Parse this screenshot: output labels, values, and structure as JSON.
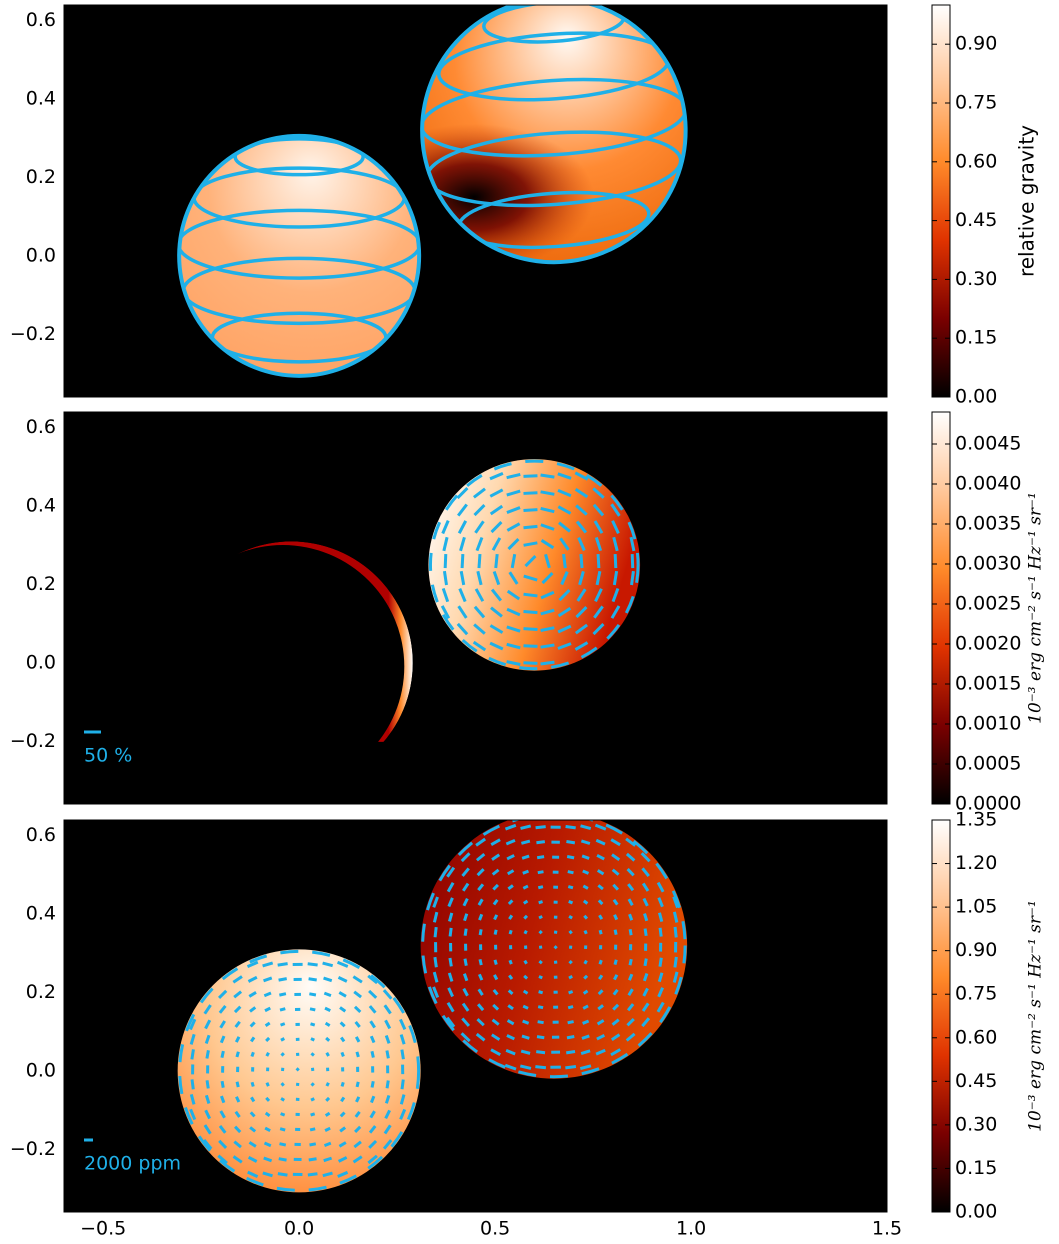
{
  "chart_data": [
    {
      "type": "image",
      "xlim": [
        -0.6,
        1.5
      ],
      "ylim": [
        -0.36,
        0.64
      ],
      "yticks": [
        {
          "value": -0.2,
          "label": "−0.2"
        },
        {
          "value": 0,
          "label": "0.0"
        },
        0.2,
        0.4,
        0.6
      ],
      "colorbar": {
        "label": "relative gravity",
        "lim": [
          0,
          1.0
        ],
        "ticks": [
          {
            "value": 0,
            "label": "0.00"
          },
          0.15,
          {
            "value": 0.3,
            "label": "0.30"
          },
          0.45,
          {
            "value": 0.6,
            "label": "0.60"
          },
          0.75,
          {
            "value": 0.9,
            "label": "0.90"
          }
        ]
      },
      "colormap": [
        "#000000",
        "#7a0000",
        "#e03300",
        "#ff8a2a",
        "#ffc79a",
        "#ffffff"
      ],
      "overlay_color": "#1fb0e8",
      "stars": [
        {
          "x": 0,
          "y": 0,
          "r": 0.31,
          "gradient": "radial",
          "colors": [
            "#fff4ea",
            "#ffb27a",
            "#ff9f5e"
          ],
          "contours": true
        },
        {
          "x": 0.65,
          "y": 0.32,
          "r": 0.34,
          "gradient": "radial",
          "colors": [
            "#fffaf5",
            "#ff8a33",
            "#e86000"
          ],
          "contours": true,
          "dark_spot": true
        }
      ]
    },
    {
      "type": "image",
      "xlim": [
        -0.6,
        1.5
      ],
      "ylim": [
        -0.36,
        0.64
      ],
      "yticks": [
        {
          "value": -0.2,
          "label": "−0.2"
        },
        {
          "value": 0,
          "label": "0.0"
        },
        0.2,
        0.4,
        0.6
      ],
      "colorbar": {
        "label": "10⁻³ erg cm⁻² s⁻¹ Hz⁻¹ sr⁻¹",
        "lim": [
          0,
          0.0049
        ],
        "ticks": [
          {
            "value": 0,
            "label": "0.0000"
          },
          0.0005,
          {
            "value": 0.001,
            "label": "0.0010"
          },
          0.0015,
          {
            "value": 0.002,
            "label": "0.0020"
          },
          0.0025,
          {
            "value": 0.003,
            "label": "0.0030"
          },
          0.0035,
          {
            "value": 0.004,
            "label": "0.0040"
          },
          0.0045
        ]
      },
      "colormap": [
        "#000000",
        "#7a0000",
        "#e03300",
        "#ff8a2a",
        "#ffc79a",
        "#ffffff"
      ],
      "overlay_color": "#1fb0e8",
      "scale_label": "50 %",
      "stars": [
        {
          "x": -0.02,
          "y": 0.0,
          "r": 0.31,
          "gradient": "crescent",
          "colors": [
            "#ffffff",
            "#ff8a2a",
            "#b00000"
          ]
        },
        {
          "x": 0.6,
          "y": 0.25,
          "r": 0.27,
          "gradient": "linear",
          "colors": [
            "#ffffff",
            "#ffd9b0",
            "#ff8a2a",
            "#c81800"
          ],
          "vectors": true
        }
      ]
    },
    {
      "type": "image",
      "xlim": [
        -0.6,
        1.5
      ],
      "ylim": [
        -0.36,
        0.64
      ],
      "yticks": [
        {
          "value": -0.2,
          "label": "−0.2"
        },
        {
          "value": 0,
          "label": "0.0"
        },
        0.2,
        0.4,
        0.6
      ],
      "xticks": [
        {
          "value": -0.5,
          "label": "−0.5"
        },
        {
          "value": 0,
          "label": "0.0"
        },
        0.5,
        {
          "value": 1,
          "label": "1.0"
        },
        1.5
      ],
      "colorbar": {
        "label": "10⁻³ erg cm⁻² s⁻¹ Hz⁻¹ sr⁻¹",
        "lim": [
          0,
          1.35
        ],
        "ticks": [
          {
            "value": 0,
            "label": "0.00"
          },
          0.15,
          {
            "value": 0.3,
            "label": "0.30"
          },
          0.45,
          {
            "value": 0.6,
            "label": "0.60"
          },
          0.75,
          {
            "value": 0.9,
            "label": "0.90"
          },
          1.05,
          {
            "value": 1.2,
            "label": "1.20"
          },
          1.35
        ]
      },
      "colormap": [
        "#000000",
        "#7a0000",
        "#e03300",
        "#ff8a2a",
        "#ffc79a",
        "#ffffff"
      ],
      "overlay_color": "#1fb0e8",
      "scale_label": "2000 ppm",
      "stars": [
        {
          "x": 0,
          "y": 0,
          "r": 0.31,
          "gradient": "radial",
          "colors": [
            "#fffcf8",
            "#ffc890",
            "#ff7a20"
          ],
          "vectors": true
        },
        {
          "x": 0.65,
          "y": 0.32,
          "r": 0.34,
          "gradient": "linear",
          "colors": [
            "#8a0000",
            "#b81a00",
            "#e04a00"
          ],
          "vectors": true
        }
      ]
    }
  ]
}
